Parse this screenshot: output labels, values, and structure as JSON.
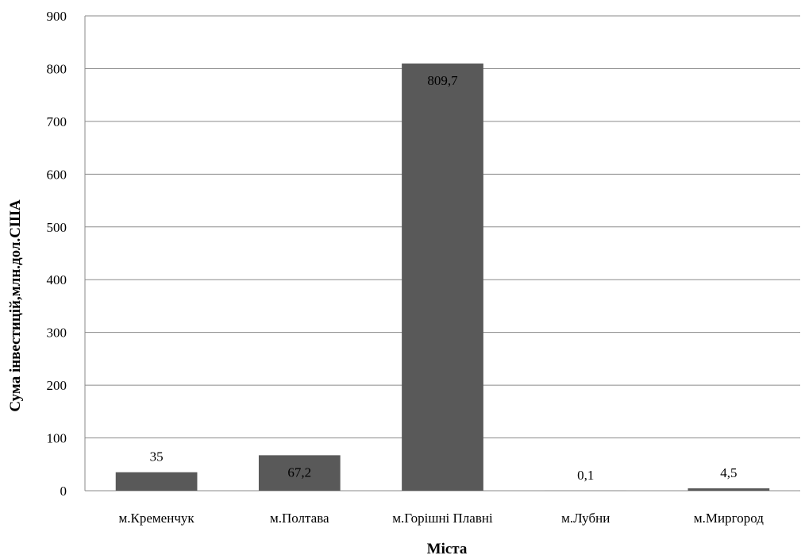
{
  "chart_data": {
    "type": "bar",
    "categories": [
      "м.Кременчук",
      "м.Полтава",
      "м.Горішні Плавні",
      "м.Лубни",
      "м.Миргород"
    ],
    "values": [
      35,
      67.2,
      809.7,
      0.1,
      4.5
    ],
    "data_labels": [
      "35",
      "67,2",
      "809,7",
      "0,1",
      "4,5"
    ],
    "title": "",
    "xlabel": "Міста",
    "ylabel": "Сума інвестицій,млн.дол.США",
    "ylim": [
      0,
      900
    ],
    "yticks": [
      0,
      100,
      200,
      300,
      400,
      500,
      600,
      700,
      800,
      900
    ],
    "grid": true,
    "legend": "none",
    "bar_color": "#595959"
  }
}
